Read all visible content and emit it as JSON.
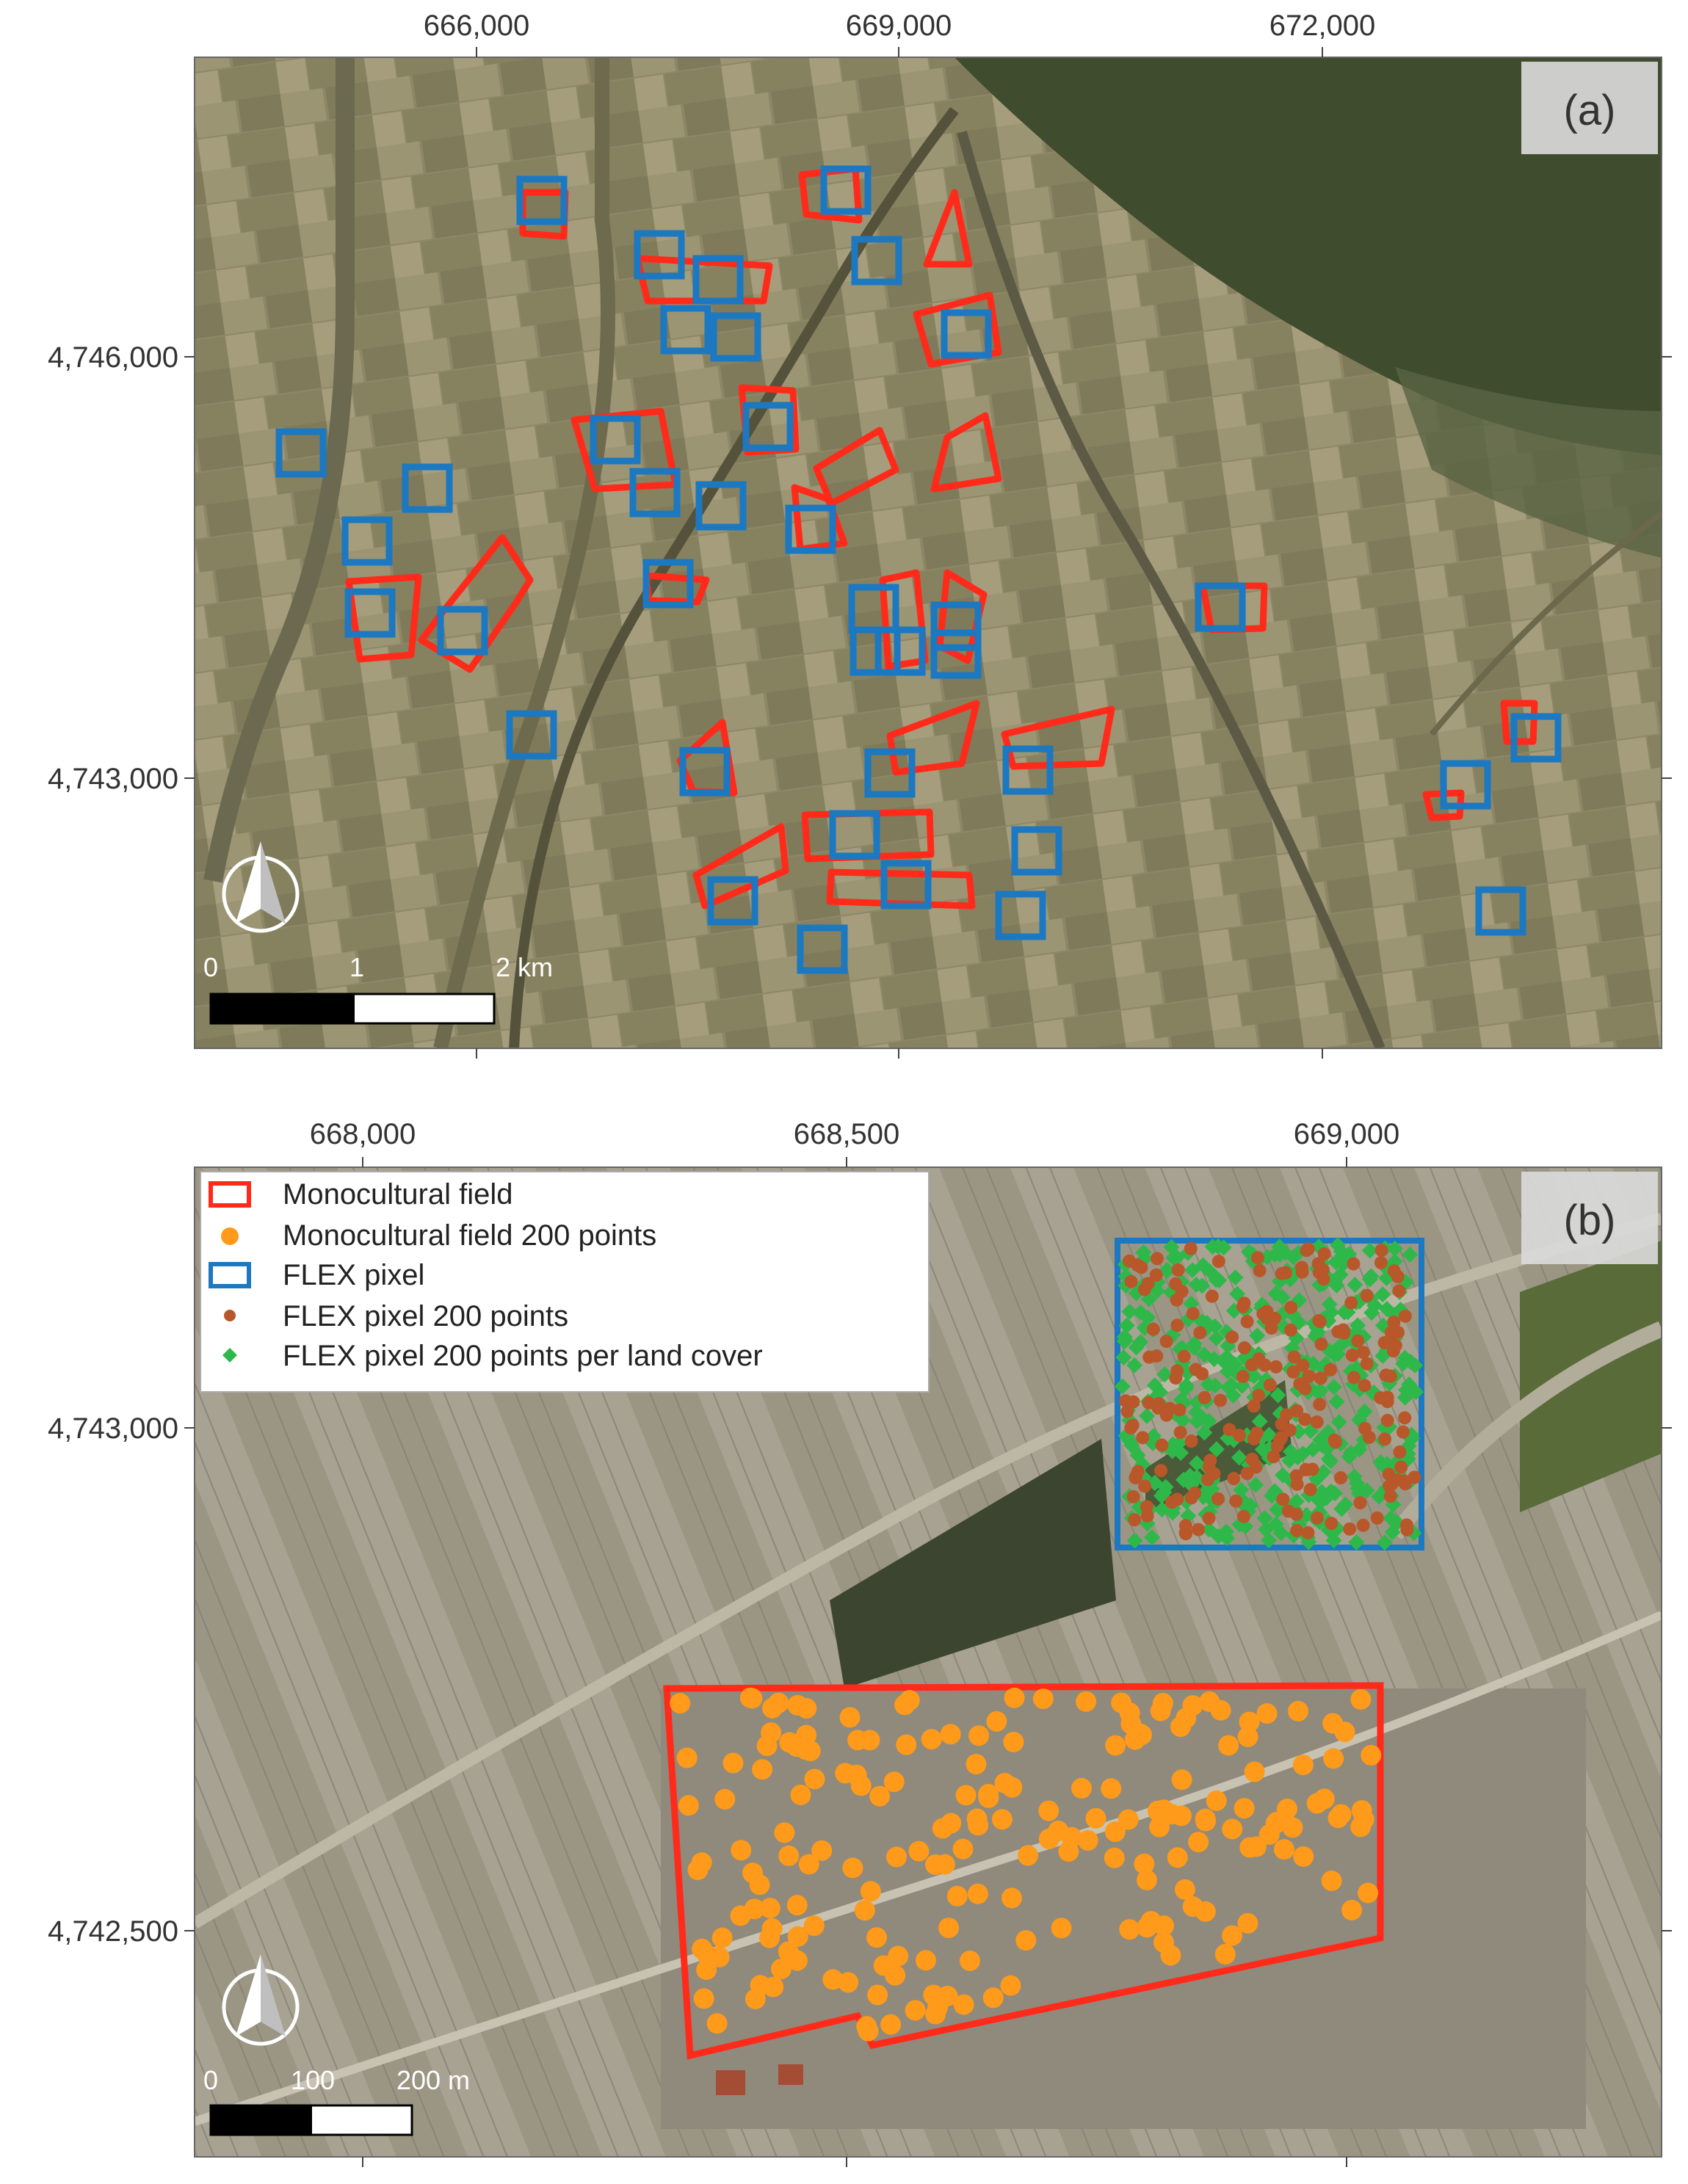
{
  "panel_a": {
    "label": "(a)",
    "x_ticks": [
      "666,000",
      "669,000",
      "672,000"
    ],
    "y_ticks": [
      "4,746,000",
      "4,743,000"
    ],
    "scale_labels": [
      "0",
      "1",
      "2 km"
    ]
  },
  "panel_b": {
    "label": "(b)",
    "x_ticks": [
      "668,000",
      "668,500",
      "669,000"
    ],
    "y_ticks": [
      "4,743,000",
      "4,742,500"
    ],
    "scale_labels": [
      "0",
      "100",
      "200 m"
    ],
    "legend": [
      {
        "label": "Monocultural field",
        "symbol": "red-outline-rect"
      },
      {
        "label": "Monocultural field 200 points",
        "symbol": "orange-circle"
      },
      {
        "label": "FLEX pixel",
        "symbol": "blue-outline-rect"
      },
      {
        "label": "FLEX pixel 200 points",
        "symbol": "brown-dot"
      },
      {
        "label": "FLEX pixel 200 points per land cover",
        "symbol": "green-diamond"
      }
    ]
  },
  "colors": {
    "field_outline": "#ff2a1a",
    "flex_pixel_outline": "#1c78c0",
    "field_points": "#ff9a1a",
    "flex_points": "#b8582a",
    "landcover_points": "#2fb84a",
    "frame": "#666666",
    "terrain_base": "#8a8566",
    "forest": "#3f4c2e"
  },
  "icons": [
    "north-arrow-icon"
  ]
}
